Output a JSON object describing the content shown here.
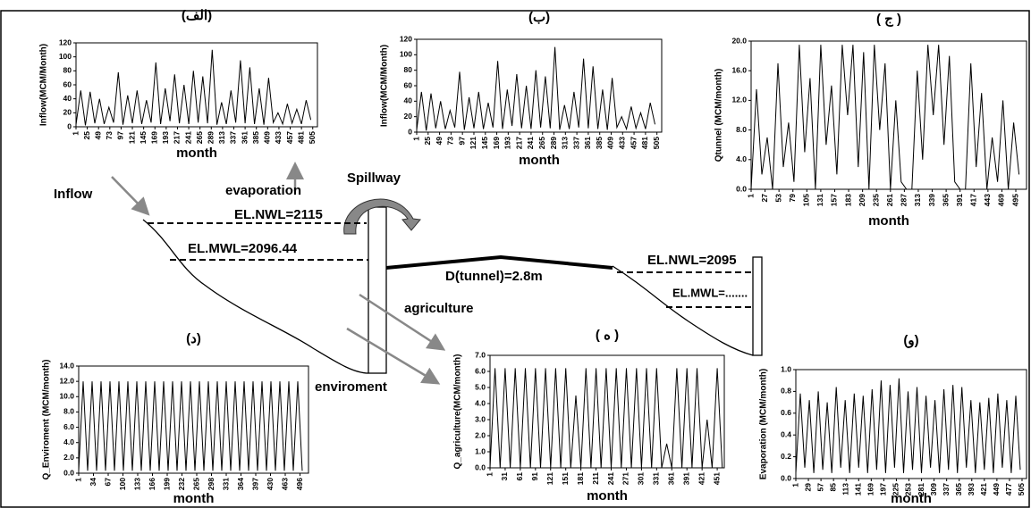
{
  "chart_data": [
    {
      "type": "line",
      "title": "(الف)",
      "x_label": "month",
      "y_label": "Inflow(MCM/Month)",
      "color": "#000000",
      "x": [
        1,
        11,
        21,
        31,
        41,
        51,
        61,
        71,
        81,
        91,
        101,
        111,
        121,
        131,
        141,
        151,
        161,
        171,
        181,
        191,
        201,
        211,
        221,
        231,
        241,
        251,
        261,
        271,
        281,
        291,
        301,
        311,
        321,
        331,
        341,
        351,
        361,
        371,
        381,
        391,
        401,
        411,
        421,
        431,
        441,
        451,
        461,
        471,
        481,
        491,
        501
      ],
      "values": [
        3,
        52,
        2,
        50,
        5,
        40,
        4,
        28,
        6,
        78,
        3,
        45,
        5,
        52,
        4,
        38,
        6,
        92,
        4,
        55,
        8,
        75,
        5,
        60,
        4,
        80,
        6,
        72,
        5,
        110,
        3,
        35,
        4,
        52,
        6,
        95,
        5,
        85,
        4,
        55,
        3,
        70,
        6,
        20,
        4,
        33,
        5,
        25,
        4,
        38,
        10
      ],
      "xlim": [
        1,
        515
      ],
      "ylim": [
        0,
        120
      ],
      "yticks": [
        0,
        20,
        40,
        60,
        80,
        100,
        120
      ],
      "xticks": [
        1,
        25,
        49,
        73,
        97,
        121,
        145,
        169,
        193,
        217,
        241,
        265,
        289,
        313,
        337,
        361,
        385,
        409,
        433,
        457,
        481,
        505
      ]
    },
    {
      "type": "line",
      "title": "(ب)",
      "x_label": "month",
      "y_label": "Inflow(MCM/Month)",
      "color": "#000000",
      "x": [
        1,
        11,
        21,
        31,
        41,
        51,
        61,
        71,
        81,
        91,
        101,
        111,
        121,
        131,
        141,
        151,
        161,
        171,
        181,
        191,
        201,
        211,
        221,
        231,
        241,
        251,
        261,
        271,
        281,
        291,
        301,
        311,
        321,
        331,
        341,
        351,
        361,
        371,
        381,
        391,
        401,
        411,
        421,
        431,
        441,
        451,
        461,
        471,
        481,
        491,
        501
      ],
      "values": [
        3,
        52,
        2,
        50,
        5,
        40,
        4,
        28,
        6,
        78,
        3,
        45,
        5,
        52,
        4,
        38,
        6,
        92,
        4,
        55,
        8,
        75,
        5,
        60,
        4,
        80,
        6,
        72,
        5,
        110,
        3,
        35,
        4,
        52,
        6,
        95,
        5,
        85,
        4,
        55,
        3,
        70,
        6,
        20,
        4,
        33,
        5,
        25,
        4,
        38,
        10
      ],
      "xlim": [
        1,
        515
      ],
      "ylim": [
        0,
        120
      ],
      "yticks": [
        0,
        20,
        40,
        60,
        80,
        100,
        120
      ],
      "xticks": [
        1,
        25,
        49,
        73,
        97,
        121,
        145,
        169,
        193,
        217,
        241,
        265,
        289,
        313,
        337,
        361,
        385,
        409,
        433,
        457,
        481,
        505
      ]
    },
    {
      "type": "line",
      "title": "( ج )",
      "x_label": "month",
      "y_label": "Qtunnel (MCM/month)",
      "color": "#000000",
      "x": [
        1,
        11,
        21,
        31,
        41,
        51,
        61,
        71,
        81,
        91,
        101,
        111,
        121,
        131,
        141,
        151,
        161,
        171,
        181,
        191,
        201,
        211,
        221,
        231,
        241,
        251,
        261,
        271,
        281,
        291,
        301,
        311,
        321,
        331,
        341,
        351,
        361,
        371,
        381,
        391,
        401,
        411,
        421,
        431,
        441,
        451,
        461,
        471,
        481,
        491,
        501
      ],
      "values": [
        0,
        13.5,
        2,
        7,
        0,
        17,
        3,
        9,
        1,
        19.5,
        5,
        15,
        0,
        19.5,
        6,
        14,
        2,
        19.5,
        10,
        19.5,
        3,
        18.5,
        0,
        19.5,
        8,
        17,
        0,
        12,
        1,
        0,
        0,
        16,
        4,
        19.5,
        10,
        19.5,
        6,
        18,
        1,
        0,
        0,
        17,
        3,
        13,
        0,
        7,
        1,
        12,
        0,
        9,
        2
      ],
      "xlim": [
        1,
        515
      ],
      "ylim": [
        0,
        20
      ],
      "yticks": [
        {
          "value": 0,
          "label": "0.0"
        },
        {
          "value": 4,
          "label": "4.0"
        },
        {
          "value": 8,
          "label": "8.0"
        },
        {
          "value": 12,
          "label": "12.0"
        },
        {
          "value": 16,
          "label": "16.0"
        },
        {
          "value": 20,
          "label": "20.0"
        }
      ],
      "xticks": [
        1,
        27,
        53,
        79,
        105,
        131,
        157,
        183,
        209,
        235,
        261,
        287,
        313,
        339,
        365,
        391,
        417,
        443,
        469,
        495
      ]
    },
    {
      "type": "line",
      "title": "(د)",
      "x_label": "month",
      "y_label": "Q_Enviroment (MCM/month)",
      "color": "#000000",
      "x": [
        1,
        11,
        21,
        31,
        41,
        51,
        61,
        71,
        81,
        91,
        101,
        111,
        121,
        131,
        141,
        151,
        161,
        171,
        181,
        191,
        201,
        211,
        221,
        231,
        241,
        251,
        261,
        271,
        281,
        291,
        301,
        311,
        321,
        331,
        341,
        351,
        361,
        371,
        381,
        391,
        401,
        411,
        421,
        431,
        441,
        451,
        461,
        471,
        481,
        491,
        501
      ],
      "values": [
        0.3,
        12,
        0.3,
        12,
        0.3,
        12,
        0.3,
        12,
        0.3,
        12,
        0.3,
        12,
        0.3,
        12,
        0.3,
        12,
        0.3,
        12,
        0.3,
        12,
        0.3,
        12,
        0.3,
        12,
        0.3,
        12,
        0.3,
        12,
        0.3,
        12,
        0.3,
        12,
        0.3,
        12,
        0.3,
        12,
        0.3,
        12,
        0.3,
        12,
        0.3,
        12,
        0.3,
        12,
        0.3,
        12,
        0.3,
        12,
        0.3,
        12,
        0.3
      ],
      "xlim": [
        1,
        515
      ],
      "ylim": [
        0,
        14
      ],
      "yticks": [
        {
          "value": 0,
          "label": "0.0"
        },
        {
          "value": 2,
          "label": "2.0"
        },
        {
          "value": 4,
          "label": "4.0"
        },
        {
          "value": 6,
          "label": "6.0"
        },
        {
          "value": 8,
          "label": "8.0"
        },
        {
          "value": 10,
          "label": "10.0"
        },
        {
          "value": 12,
          "label": "12.0"
        },
        {
          "value": 14,
          "label": "14.0"
        }
      ],
      "xticks": [
        1,
        34,
        67,
        100,
        133,
        166,
        199,
        232,
        265,
        298,
        331,
        364,
        397,
        430,
        463,
        496
      ]
    },
    {
      "type": "line",
      "title": "( ه )",
      "x_label": "month",
      "y_label": "Q_agriculture(MCM/month)",
      "color": "#000000",
      "x": [
        1,
        11,
        21,
        31,
        41,
        51,
        61,
        71,
        81,
        91,
        101,
        111,
        121,
        131,
        141,
        151,
        161,
        171,
        181,
        191,
        201,
        211,
        221,
        231,
        241,
        251,
        261,
        271,
        281,
        291,
        301,
        311,
        321,
        331,
        341,
        351,
        361,
        371,
        381,
        391,
        401,
        411,
        421,
        431,
        441,
        451,
        461
      ],
      "values": [
        0,
        6.2,
        0,
        6.2,
        0,
        6.2,
        0,
        6.2,
        0,
        6.2,
        0,
        6.2,
        0,
        6.2,
        0,
        6.2,
        0,
        4.5,
        0,
        6.2,
        0,
        6.2,
        0,
        6.2,
        0,
        6.2,
        0,
        6.2,
        0,
        6.2,
        0,
        6.2,
        0,
        6.2,
        0,
        1.5,
        0,
        6.2,
        0,
        6.2,
        0,
        6.2,
        0,
        3,
        0,
        6.2,
        0
      ],
      "xlim": [
        1,
        465
      ],
      "ylim": [
        0,
        7
      ],
      "yticks": [
        {
          "value": 0,
          "label": "0.0"
        },
        {
          "value": 1,
          "label": "1.0"
        },
        {
          "value": 2,
          "label": "2.0"
        },
        {
          "value": 3,
          "label": "3.0"
        },
        {
          "value": 4,
          "label": "4.0"
        },
        {
          "value": 5,
          "label": "5.0"
        },
        {
          "value": 6,
          "label": "6.0"
        },
        {
          "value": 7,
          "label": "7.0"
        }
      ],
      "xticks": [
        1,
        31,
        61,
        91,
        121,
        151,
        181,
        211,
        241,
        271,
        301,
        331,
        361,
        391,
        421,
        451
      ]
    },
    {
      "type": "line",
      "title": "(و)",
      "x_label": "month",
      "y_label": "Evaporation (MCM/month)",
      "color": "#000000",
      "x": [
        1,
        11,
        21,
        31,
        41,
        51,
        61,
        71,
        81,
        91,
        101,
        111,
        121,
        131,
        141,
        151,
        161,
        171,
        181,
        191,
        201,
        211,
        221,
        231,
        241,
        251,
        261,
        271,
        281,
        291,
        301,
        311,
        321,
        331,
        341,
        351,
        361,
        371,
        381,
        391,
        401,
        411,
        421,
        431,
        441,
        451,
        461,
        471,
        481,
        491,
        501
      ],
      "values": [
        0.05,
        0.78,
        0.1,
        0.72,
        0.05,
        0.8,
        0.08,
        0.7,
        0.05,
        0.84,
        0.1,
        0.72,
        0.05,
        0.78,
        0.1,
        0.76,
        0.05,
        0.82,
        0.08,
        0.9,
        0.05,
        0.86,
        0.1,
        0.92,
        0.05,
        0.8,
        0.08,
        0.84,
        0.05,
        0.76,
        0.1,
        0.72,
        0.05,
        0.82,
        0.08,
        0.86,
        0.05,
        0.84,
        0.1,
        0.72,
        0.05,
        0.7,
        0.08,
        0.74,
        0.05,
        0.78,
        0.1,
        0.72,
        0.05,
        0.76,
        0.08
      ],
      "xlim": [
        1,
        515
      ],
      "ylim": [
        0,
        1
      ],
      "yticks": [
        {
          "value": 0,
          "label": "0.0"
        },
        {
          "value": 0.2,
          "label": "0.2"
        },
        {
          "value": 0.4,
          "label": "0.4"
        },
        {
          "value": 0.6,
          "label": "0.6"
        },
        {
          "value": 0.8,
          "label": "0.8"
        },
        {
          "value": 1,
          "label": "1.0"
        }
      ],
      "xticks": [
        1,
        29,
        57,
        85,
        113,
        141,
        169,
        197,
        225,
        253,
        281,
        309,
        337,
        365,
        393,
        421,
        449,
        477,
        505
      ]
    }
  ],
  "diagram": {
    "inflow": "Inflow",
    "evaporation": "evaporation",
    "spillway": "Spillway",
    "nwl_left": "EL.NWL=2115",
    "mwl_left": "EL.MWL=2096.44",
    "tunnel": "D(tunnel)=2.8m",
    "nwl_right": "EL.NWL=2095",
    "mwl_right": "EL.MWL=.......",
    "agriculture": "agriculture",
    "environment": "enviroment"
  }
}
